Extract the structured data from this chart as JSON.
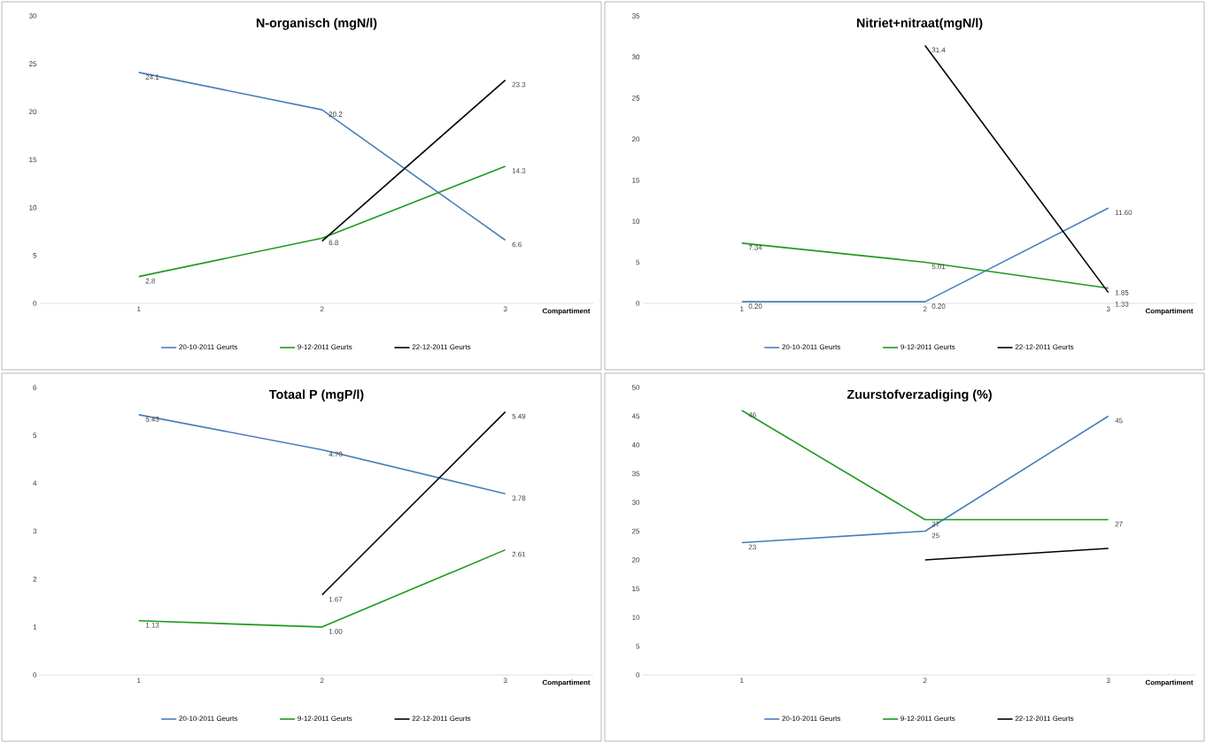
{
  "chart_data": [
    {
      "type": "line",
      "title": "N-organisch (mgN/l)",
      "xlabel": "Compartiment",
      "categories": [
        "1",
        "2",
        "3"
      ],
      "ylim": [
        0,
        30
      ],
      "yticks": [
        0,
        5,
        10,
        15,
        20,
        25,
        30
      ],
      "legend": "bottom",
      "marker": "none",
      "series": [
        {
          "name": "20-10-2011 Geurts",
          "color": "#4a7ebb",
          "values": [
            24.1,
            20.2,
            6.6
          ],
          "value_labels": [
            "24.1",
            "20.2",
            "6.6"
          ]
        },
        {
          "name": "9-12-2011 Geurts",
          "color": "#1e9a1e",
          "values": [
            2.8,
            6.8,
            14.3
          ],
          "value_labels": [
            "2.8",
            "6.8",
            "14.3"
          ]
        },
        {
          "name": "22-12-2011 Geurts",
          "color": "#000000",
          "values": [
            null,
            6.5,
            23.3
          ],
          "value_labels": [
            null,
            null,
            "23.3"
          ]
        }
      ]
    },
    {
      "type": "line",
      "title": "Nitriet+nitraat(mgN/l)",
      "xlabel": "Compartiment",
      "categories": [
        "1",
        "2",
        "3"
      ],
      "ylim": [
        0,
        35
      ],
      "yticks": [
        0,
        5,
        10,
        15,
        20,
        25,
        30,
        35
      ],
      "legend": "bottom",
      "marker": "none",
      "series": [
        {
          "name": "20-10-2011 Geurts",
          "color": "#4a7ebb",
          "values": [
            0.2,
            0.2,
            11.6
          ],
          "value_labels": [
            "0.20",
            "0.20",
            "11.60"
          ]
        },
        {
          "name": "9-12-2011 Geurts",
          "color": "#1e9a1e",
          "values": [
            7.34,
            5.01,
            1.85
          ],
          "value_labels": [
            "7.34",
            "5.01",
            "1.85"
          ]
        },
        {
          "name": "22-12-2011 Geurts",
          "color": "#000000",
          "values": [
            null,
            31.4,
            1.33
          ],
          "value_labels": [
            null,
            "31.4",
            "1.33"
          ]
        }
      ]
    },
    {
      "type": "line",
      "title": "Totaal P (mgP/l)",
      "xlabel": "Compartiment",
      "categories": [
        "1",
        "2",
        "3"
      ],
      "ylim": [
        0,
        6
      ],
      "yticks": [
        0,
        1,
        2,
        3,
        4,
        5,
        6
      ],
      "legend": "bottom",
      "marker": "none",
      "series": [
        {
          "name": "20-10-2011 Geurts",
          "color": "#4a7ebb",
          "values": [
            5.43,
            4.7,
            3.78
          ],
          "value_labels": [
            "5.43",
            "4.70",
            "3.78"
          ]
        },
        {
          "name": "9-12-2011 Geurts",
          "color": "#1e9a1e",
          "values": [
            1.13,
            1.0,
            2.61
          ],
          "value_labels": [
            "1.13",
            "1.00",
            "2.61"
          ]
        },
        {
          "name": "22-12-2011 Geurts",
          "color": "#000000",
          "values": [
            null,
            1.67,
            5.49
          ],
          "value_labels": [
            null,
            "1.67",
            "5.49"
          ]
        }
      ]
    },
    {
      "type": "line",
      "title": "Zuurstofverzadiging (%)",
      "xlabel": "Compartiment",
      "categories": [
        "1",
        "2",
        "3"
      ],
      "ylim": [
        0,
        50
      ],
      "yticks": [
        0,
        5,
        10,
        15,
        20,
        25,
        30,
        35,
        40,
        45,
        50
      ],
      "legend": "bottom",
      "marker": "none",
      "series": [
        {
          "name": "20-10-2011 Geurts",
          "color": "#4a7ebb",
          "values": [
            23,
            25,
            45
          ],
          "value_labels": [
            "23",
            "25",
            "45"
          ]
        },
        {
          "name": "9-12-2011 Geurts",
          "color": "#1e9a1e",
          "values": [
            46,
            27,
            27
          ],
          "value_labels": [
            "46",
            "27",
            "27"
          ]
        },
        {
          "name": "22-12-2011 Geurts",
          "color": "#000000",
          "values": [
            null,
            20,
            22
          ]
        }
      ]
    }
  ]
}
